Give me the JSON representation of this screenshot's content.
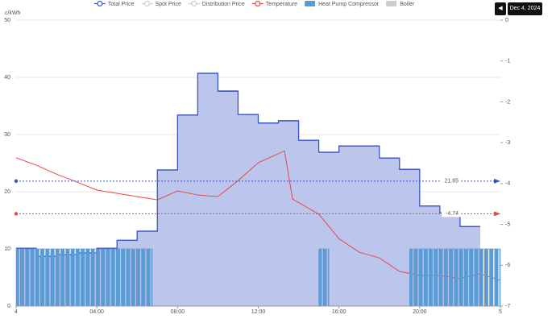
{
  "chart_data": {
    "type": "combo",
    "date_label": "Dec 4, 2024",
    "y_label": "c/kWh",
    "xlim": [
      0,
      24
    ],
    "xticks": [
      {
        "value": 0,
        "label": "4"
      },
      {
        "value": 4,
        "label": "04:00"
      },
      {
        "value": 8,
        "label": "08:00"
      },
      {
        "value": 12,
        "label": "12:00"
      },
      {
        "value": 16,
        "label": "16:00"
      },
      {
        "value": 20,
        "label": "20:00"
      },
      {
        "value": 24,
        "label": "5"
      }
    ],
    "ylim": [
      0,
      50
    ],
    "yticks": [
      0,
      10,
      20,
      30,
      40,
      50
    ],
    "y2lim": [
      -7,
      0
    ],
    "y2ticks": [
      0,
      -1,
      -2,
      -3,
      -4,
      -5,
      -6,
      -7
    ],
    "grid": true,
    "series": [
      {
        "name": "Total Price",
        "color": "#3b55c4",
        "kind": "step",
        "x": [
          0,
          1,
          2,
          3,
          4,
          5,
          6,
          7,
          8,
          9,
          10,
          11,
          12,
          13,
          14,
          15,
          16,
          17,
          18,
          19,
          20,
          21,
          22
        ],
        "values": [
          10.1,
          8.7,
          9.0,
          9.3,
          10.1,
          11.5,
          13.1,
          23.8,
          33.4,
          40.7,
          37.6,
          33.5,
          32.0,
          32.4,
          29.0,
          26.9,
          28.0,
          28.0,
          25.9,
          23.9,
          17.5,
          16.3,
          13.9
        ]
      },
      {
        "name": "Spot Price",
        "color": "#bbbbbb",
        "kind": "line",
        "hidden": true
      },
      {
        "name": "Distribution Price",
        "color": "#bbbbbb",
        "kind": "line",
        "hidden": true
      },
      {
        "name": "Temperature",
        "color": "#e8474a",
        "kind": "line",
        "axis": "y2",
        "x": [
          0,
          1,
          2,
          3,
          4,
          5,
          6,
          7,
          8,
          9,
          10,
          11,
          12,
          13.3,
          13.7,
          15,
          16,
          17,
          18,
          19,
          20,
          21,
          22,
          23,
          24
        ],
        "values": [
          -3.37,
          -3.55,
          -3.77,
          -3.96,
          -4.16,
          -4.24,
          -4.32,
          -4.4,
          -4.18,
          -4.28,
          -4.32,
          -3.93,
          -3.49,
          -3.2,
          -4.38,
          -4.75,
          -5.35,
          -5.68,
          -5.82,
          -6.15,
          -6.25,
          -6.25,
          -6.33,
          -6.21,
          -6.37
        ]
      },
      {
        "name": "Heat Pump Compressor",
        "color": "#5b9bd5",
        "kind": "bar",
        "x_start": [
          0,
          15,
          19.5
        ],
        "x_end": [
          6.75,
          15.5,
          24
        ],
        "values": [
          10,
          10,
          10
        ]
      },
      {
        "name": "Boiler",
        "color": "#cccccc",
        "kind": "bar",
        "hidden": true
      }
    ],
    "mark_lines": [
      {
        "value": 21.85,
        "color": "#3b55c4"
      },
      {
        "value": -4.74,
        "axis": "y2",
        "color": "#e8474a"
      }
    ]
  }
}
